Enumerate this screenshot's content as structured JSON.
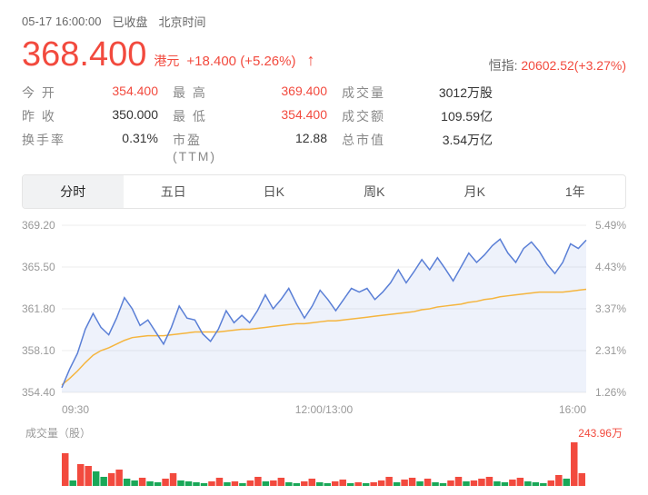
{
  "header": {
    "datetime": "05-17 16:00:00",
    "status": "已收盘",
    "tz": "北京时间"
  },
  "price": {
    "value": "368.400",
    "currency": "港元",
    "change_abs": "+18.400",
    "change_pct": "(+5.26%)",
    "direction": "up",
    "color": "#f24a3e"
  },
  "index": {
    "label": "恒指:",
    "value": "20602.52",
    "change": "(+3.27%)",
    "color": "#f24a3e"
  },
  "stats": [
    {
      "label": "今 开",
      "value": "354.400",
      "color": "#f24a3e"
    },
    {
      "label": "最 高",
      "value": "369.400",
      "color": "#f24a3e"
    },
    {
      "label": "成交量",
      "value": "3012万股",
      "color": "#333"
    },
    {
      "label": "昨 收",
      "value": "350.000",
      "color": "#333"
    },
    {
      "label": "最 低",
      "value": "354.400",
      "color": "#f24a3e"
    },
    {
      "label": "成交额",
      "value": "109.59亿",
      "color": "#333"
    },
    {
      "label": "换手率",
      "value": "0.31%",
      "color": "#333"
    },
    {
      "label": "市盈(TTM)",
      "value": "12.88",
      "color": "#333"
    },
    {
      "label": "总市值",
      "value": "3.54万亿",
      "color": "#333"
    }
  ],
  "tabs": {
    "items": [
      "分时",
      "五日",
      "日K",
      "周K",
      "月K",
      "1年"
    ],
    "active": 0
  },
  "chart": {
    "y_left": [
      "369.20",
      "365.50",
      "361.80",
      "358.10",
      "354.40"
    ],
    "y_right": [
      "5.49%",
      "4.43%",
      "3.37%",
      "2.31%",
      "1.26%"
    ],
    "x_labels": [
      "09:30",
      "12:00/13:00",
      "16:00"
    ],
    "ymin": 352.0,
    "ymax": 370.0,
    "price_line_color": "#5a7fd6",
    "price_fill_color": "rgba(90,127,214,0.10)",
    "avg_line_color": "#f5b53e",
    "grid_color": "#eeeeee",
    "price_points": [
      352.5,
      354.5,
      356.2,
      358.8,
      360.5,
      359.0,
      358.2,
      360.0,
      362.2,
      361.0,
      359.2,
      359.8,
      358.5,
      357.2,
      359.0,
      361.3,
      360.0,
      359.8,
      358.3,
      357.5,
      358.8,
      360.8,
      359.5,
      360.3,
      359.5,
      360.8,
      362.5,
      361.0,
      362.0,
      363.2,
      361.5,
      360.0,
      361.3,
      363.0,
      362.0,
      360.8,
      362.0,
      363.2,
      362.8,
      363.2,
      362.0,
      362.8,
      363.8,
      365.2,
      363.8,
      365.0,
      366.3,
      365.2,
      366.5,
      365.3,
      364.0,
      365.5,
      367.0,
      366.0,
      366.8,
      367.8,
      368.5,
      367.0,
      366.0,
      367.5,
      368.2,
      367.2,
      365.8,
      364.8,
      366.0,
      368.0,
      367.5,
      368.4
    ],
    "avg_points": [
      352.8,
      353.5,
      354.3,
      355.2,
      356.0,
      356.5,
      356.8,
      357.2,
      357.6,
      357.9,
      358.0,
      358.1,
      358.1,
      358.1,
      358.2,
      358.3,
      358.4,
      358.5,
      358.5,
      358.5,
      358.5,
      358.6,
      358.7,
      358.8,
      358.8,
      358.9,
      359.0,
      359.1,
      359.2,
      359.3,
      359.4,
      359.4,
      359.5,
      359.6,
      359.7,
      359.7,
      359.8,
      359.9,
      360.0,
      360.1,
      360.2,
      360.3,
      360.4,
      360.5,
      360.6,
      360.7,
      360.9,
      361.0,
      361.2,
      361.3,
      361.4,
      361.5,
      361.7,
      361.8,
      362.0,
      362.1,
      362.3,
      362.4,
      362.5,
      362.6,
      362.7,
      362.8,
      362.8,
      362.8,
      362.8,
      362.9,
      363.0,
      363.1
    ]
  },
  "volume": {
    "label": "成交量（股）",
    "max_label": "243.96万",
    "max_color": "#f24a3e",
    "bar_up_color": "#f24a3e",
    "bar_down_color": "#1aa858",
    "bars": [
      {
        "h": 36,
        "d": "up"
      },
      {
        "h": 6,
        "d": "down"
      },
      {
        "h": 24,
        "d": "up"
      },
      {
        "h": 22,
        "d": "up"
      },
      {
        "h": 16,
        "d": "down"
      },
      {
        "h": 10,
        "d": "down"
      },
      {
        "h": 14,
        "d": "up"
      },
      {
        "h": 18,
        "d": "up"
      },
      {
        "h": 8,
        "d": "down"
      },
      {
        "h": 6,
        "d": "down"
      },
      {
        "h": 9,
        "d": "up"
      },
      {
        "h": 5,
        "d": "down"
      },
      {
        "h": 4,
        "d": "down"
      },
      {
        "h": 8,
        "d": "up"
      },
      {
        "h": 14,
        "d": "up"
      },
      {
        "h": 6,
        "d": "down"
      },
      {
        "h": 5,
        "d": "down"
      },
      {
        "h": 4,
        "d": "down"
      },
      {
        "h": 3,
        "d": "down"
      },
      {
        "h": 5,
        "d": "up"
      },
      {
        "h": 9,
        "d": "up"
      },
      {
        "h": 4,
        "d": "down"
      },
      {
        "h": 5,
        "d": "up"
      },
      {
        "h": 3,
        "d": "down"
      },
      {
        "h": 6,
        "d": "up"
      },
      {
        "h": 10,
        "d": "up"
      },
      {
        "h": 5,
        "d": "down"
      },
      {
        "h": 6,
        "d": "up"
      },
      {
        "h": 9,
        "d": "up"
      },
      {
        "h": 4,
        "d": "down"
      },
      {
        "h": 3,
        "d": "down"
      },
      {
        "h": 5,
        "d": "up"
      },
      {
        "h": 8,
        "d": "up"
      },
      {
        "h": 4,
        "d": "down"
      },
      {
        "h": 3,
        "d": "down"
      },
      {
        "h": 5,
        "d": "up"
      },
      {
        "h": 7,
        "d": "up"
      },
      {
        "h": 3,
        "d": "down"
      },
      {
        "h": 4,
        "d": "up"
      },
      {
        "h": 3,
        "d": "down"
      },
      {
        "h": 4,
        "d": "up"
      },
      {
        "h": 6,
        "d": "up"
      },
      {
        "h": 10,
        "d": "up"
      },
      {
        "h": 4,
        "d": "down"
      },
      {
        "h": 7,
        "d": "up"
      },
      {
        "h": 9,
        "d": "up"
      },
      {
        "h": 5,
        "d": "down"
      },
      {
        "h": 8,
        "d": "up"
      },
      {
        "h": 4,
        "d": "down"
      },
      {
        "h": 3,
        "d": "down"
      },
      {
        "h": 6,
        "d": "up"
      },
      {
        "h": 10,
        "d": "up"
      },
      {
        "h": 5,
        "d": "down"
      },
      {
        "h": 6,
        "d": "up"
      },
      {
        "h": 8,
        "d": "up"
      },
      {
        "h": 10,
        "d": "up"
      },
      {
        "h": 5,
        "d": "down"
      },
      {
        "h": 4,
        "d": "down"
      },
      {
        "h": 7,
        "d": "up"
      },
      {
        "h": 9,
        "d": "up"
      },
      {
        "h": 5,
        "d": "down"
      },
      {
        "h": 4,
        "d": "down"
      },
      {
        "h": 3,
        "d": "down"
      },
      {
        "h": 6,
        "d": "up"
      },
      {
        "h": 12,
        "d": "up"
      },
      {
        "h": 8,
        "d": "down"
      },
      {
        "h": 48,
        "d": "up"
      },
      {
        "h": 14,
        "d": "up"
      }
    ]
  }
}
